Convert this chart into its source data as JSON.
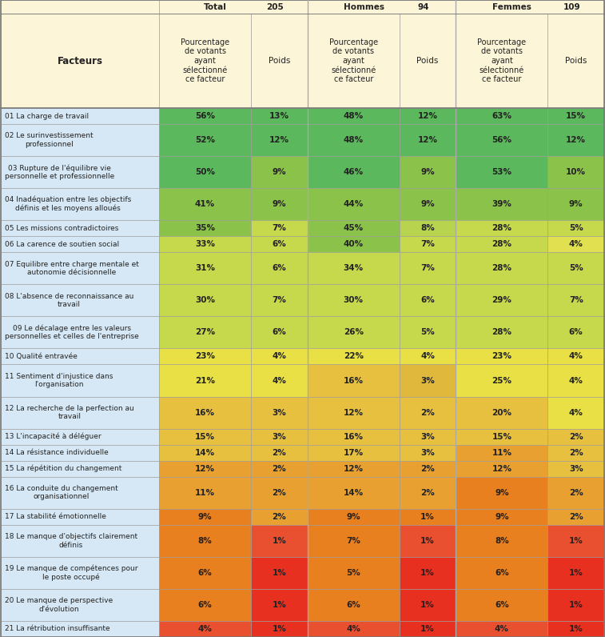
{
  "header_bg": "#fdf5d8",
  "row_label_bg": "#d6e8f5",
  "col_headers": [
    "Pourcentage\nde votants\nayant\nsélectionné\nce facteur",
    "Poids",
    "Pourcentage\nde votants\nayant\nsélectionné\nce facteur",
    "Poids",
    "Pourcentage\nde votants\nayant\nsélectionné\nce facteur",
    "Poids"
  ],
  "factors": [
    "01 La charge de travail",
    "02 Le surinvestissement\nprofessionnel",
    "03 Rupture de l'équilibre vie\npersonnelle et professionnelle",
    "04 Inadéquation entre les objectifs\ndéfinis et les moyens alloués",
    "05 Les missions contradictoires",
    "06 La carence de soutien social",
    "07 Equilibre entre charge mentale et\nautonomie décisionnelle",
    "08 L'absence de reconnaissance au\ntravail",
    "09 Le décalage entre les valeurs\npersonnelles et celles de l'entreprise",
    "10 Qualité entravée",
    "11 Sentiment d'injustice dans\nl'organisation",
    "12 La recherche de la perfection au\ntravail",
    "13 L'incapacité à déléguer",
    "14 La résistance individuelle",
    "15 La répétition du changement",
    "16 La conduite du changement\norganisationnel",
    "17 La stabilité émotionnelle",
    "18 Le manque d'objectifs clairement\ndéfinis",
    "19 Le manque de compétences pour\nle poste occupé",
    "20 Le manque de perspective\nd'évolution",
    "21 La rétribution insuffisante"
  ],
  "data": [
    [
      "56%",
      "13%",
      "48%",
      "12%",
      "63%",
      "15%"
    ],
    [
      "52%",
      "12%",
      "48%",
      "12%",
      "56%",
      "12%"
    ],
    [
      "50%",
      "9%",
      "46%",
      "9%",
      "53%",
      "10%"
    ],
    [
      "41%",
      "9%",
      "44%",
      "9%",
      "39%",
      "9%"
    ],
    [
      "35%",
      "7%",
      "45%",
      "8%",
      "28%",
      "5%"
    ],
    [
      "33%",
      "6%",
      "40%",
      "7%",
      "28%",
      "4%"
    ],
    [
      "31%",
      "6%",
      "34%",
      "7%",
      "28%",
      "5%"
    ],
    [
      "30%",
      "7%",
      "30%",
      "6%",
      "29%",
      "7%"
    ],
    [
      "27%",
      "6%",
      "26%",
      "5%",
      "28%",
      "6%"
    ],
    [
      "23%",
      "4%",
      "22%",
      "4%",
      "23%",
      "4%"
    ],
    [
      "21%",
      "4%",
      "16%",
      "3%",
      "25%",
      "4%"
    ],
    [
      "16%",
      "3%",
      "12%",
      "2%",
      "20%",
      "4%"
    ],
    [
      "15%",
      "3%",
      "16%",
      "3%",
      "15%",
      "2%"
    ],
    [
      "14%",
      "2%",
      "17%",
      "3%",
      "11%",
      "2%"
    ],
    [
      "12%",
      "2%",
      "12%",
      "2%",
      "12%",
      "3%"
    ],
    [
      "11%",
      "2%",
      "14%",
      "2%",
      "9%",
      "2%"
    ],
    [
      "9%",
      "2%",
      "9%",
      "1%",
      "9%",
      "2%"
    ],
    [
      "8%",
      "1%",
      "7%",
      "1%",
      "8%",
      "1%"
    ],
    [
      "6%",
      "1%",
      "5%",
      "1%",
      "6%",
      "1%"
    ],
    [
      "6%",
      "1%",
      "6%",
      "1%",
      "6%",
      "1%"
    ],
    [
      "4%",
      "1%",
      "4%",
      "1%",
      "4%",
      "1%"
    ]
  ],
  "cell_colors": [
    [
      "#5cb85c",
      "#5cb85c",
      "#5cb85c",
      "#5cb85c",
      "#5cb85c",
      "#5cb85c"
    ],
    [
      "#5cb85c",
      "#5cb85c",
      "#5cb85c",
      "#5cb85c",
      "#5cb85c",
      "#5cb85c"
    ],
    [
      "#5cb85c",
      "#8bc34a",
      "#5cb85c",
      "#8bc34a",
      "#5cb85c",
      "#8bc34a"
    ],
    [
      "#8bc34a",
      "#8bc34a",
      "#8bc34a",
      "#8bc34a",
      "#8bc34a",
      "#8bc34a"
    ],
    [
      "#8bc34a",
      "#c6d84b",
      "#8bc34a",
      "#b8d44e",
      "#c6d84b",
      "#c6d84b"
    ],
    [
      "#c6d84b",
      "#c6d84b",
      "#8bc34a",
      "#c6d84b",
      "#c6d84b",
      "#e0e050"
    ],
    [
      "#c6d84b",
      "#c6d84b",
      "#c6d84b",
      "#c6d84b",
      "#c6d84b",
      "#c6d84b"
    ],
    [
      "#c6d84b",
      "#c6d84b",
      "#c6d84b",
      "#c6d84b",
      "#c6d84b",
      "#c6d84b"
    ],
    [
      "#c6d84b",
      "#c6d84b",
      "#c6d84b",
      "#c6d84b",
      "#c6d84b",
      "#c6d84b"
    ],
    [
      "#e8e044",
      "#e8e044",
      "#e8e044",
      "#e8e044",
      "#e8e044",
      "#e8e044"
    ],
    [
      "#e8e044",
      "#e8e044",
      "#e8c040",
      "#e0b83c",
      "#e8e044",
      "#e8e044"
    ],
    [
      "#e8c040",
      "#e8c040",
      "#e8c040",
      "#e8c040",
      "#e8c040",
      "#e8e044"
    ],
    [
      "#e8c040",
      "#e8c040",
      "#e8c040",
      "#e8c040",
      "#e8c040",
      "#e8c040"
    ],
    [
      "#e8c040",
      "#e8c040",
      "#e8c040",
      "#e8c040",
      "#e8a030",
      "#e8c040"
    ],
    [
      "#e8a030",
      "#e8a030",
      "#e8a030",
      "#e8a030",
      "#e8a030",
      "#e8c040"
    ],
    [
      "#e8a030",
      "#e8a030",
      "#e8a030",
      "#e8a030",
      "#e88020",
      "#e8a030"
    ],
    [
      "#e88020",
      "#e8a030",
      "#e88020",
      "#e88020",
      "#e88020",
      "#e8a030"
    ],
    [
      "#e88020",
      "#e85030",
      "#e88020",
      "#e85030",
      "#e88020",
      "#e85030"
    ],
    [
      "#e88020",
      "#e83020",
      "#e88020",
      "#e83020",
      "#e88020",
      "#e83020"
    ],
    [
      "#e88020",
      "#e83020",
      "#e88020",
      "#e83020",
      "#e88020",
      "#e83020"
    ],
    [
      "#e85030",
      "#e83020",
      "#e85030",
      "#e83020",
      "#e85030",
      "#e83020"
    ]
  ],
  "border_color": "#999999",
  "text_color_dark": "#333333",
  "sep_color": "#aaaaaa"
}
